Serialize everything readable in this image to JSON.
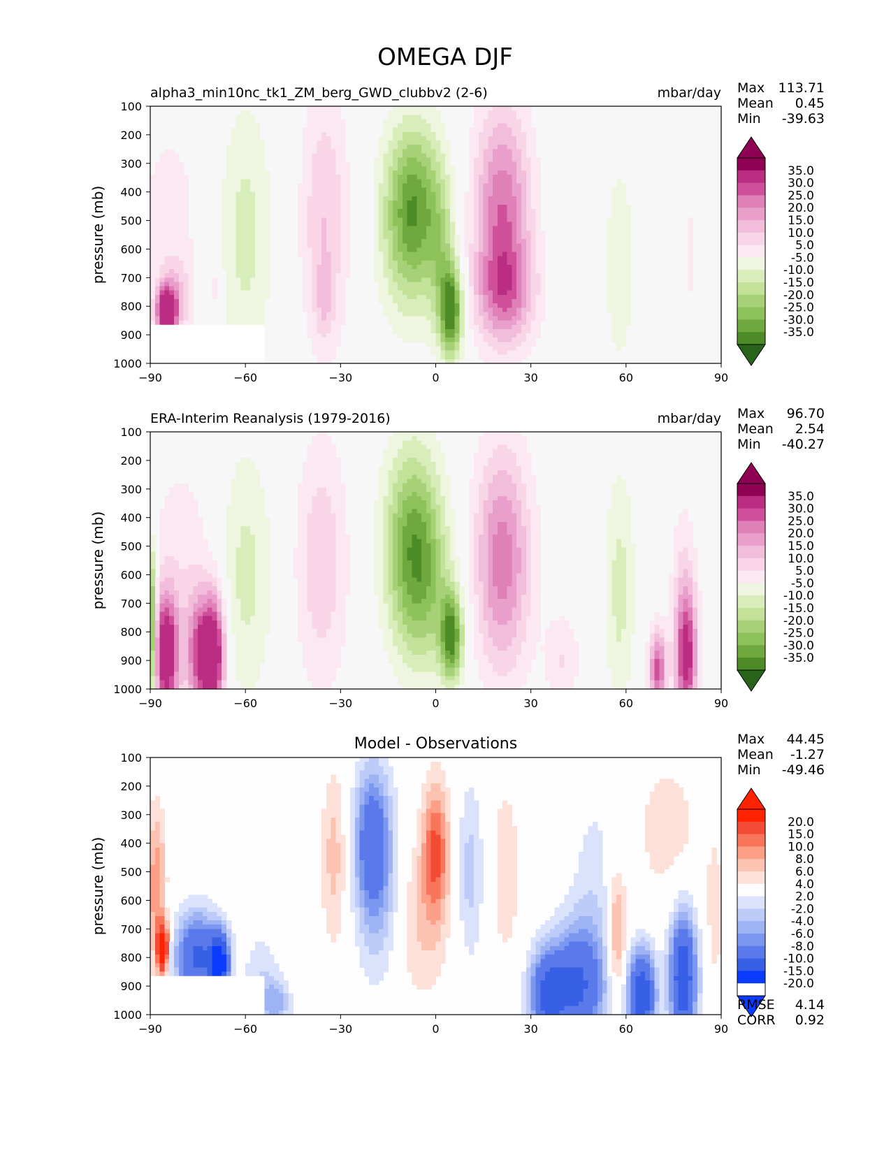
{
  "figure": {
    "title": "OMEGA DJF"
  },
  "colors": {
    "panel_bg": "#f7f7f7",
    "diff_bg": "#fdfdfd",
    "pink_levels": [
      "#f7f7f7",
      "#fbe8f2",
      "#f8d6e8",
      "#f2bcdb",
      "#e99fcb",
      "#df80b8",
      "#cf4f9a",
      "#bb2d82",
      "#8e0152"
    ],
    "green_levels": [
      "#f7f7f7",
      "#eef6e0",
      "#d9edbb",
      "#c2e29a",
      "#a6d176",
      "#8dc25a",
      "#6fa83c",
      "#4d8b27",
      "#2e6a16",
      "#276419"
    ],
    "red_levels": [
      "#fdfdfd",
      "#fde0d8",
      "#fcc3b3",
      "#fb9f86",
      "#f8755b",
      "#f34a34",
      "#ff2200"
    ],
    "blue_levels": [
      "#fdfdfd",
      "#dbe2fb",
      "#bccbf8",
      "#9db3f4",
      "#7c97ef",
      "#5a79ea",
      "#3760e6",
      "#0a3cff"
    ]
  },
  "chart_data": [
    {
      "type": "contour",
      "id": "model",
      "title_left": "alpha3_min10nc_tk1_ZM_berg_GWD_clubbv2 (2-6)",
      "title_center": "",
      "units": "mbar/day",
      "ylabel": "pressure (mb)",
      "xlim": [
        -90,
        90
      ],
      "ylim": [
        1000,
        100
      ],
      "x_ticks": [
        "−90",
        "−60",
        "−30",
        "0",
        "30",
        "60",
        "90"
      ],
      "y_ticks": [
        "100",
        "200",
        "300",
        "400",
        "500",
        "600",
        "700",
        "800",
        "900",
        "1000"
      ],
      "stats": {
        "max_label": "Max",
        "max": "113.71",
        "mean_label": "Mean",
        "mean": "0.45",
        "min_label": "Min",
        "min": "-39.63"
      },
      "colorbar_levels": [
        "35.0",
        "30.0",
        "25.0",
        "20.0",
        "15.0",
        "10.0",
        "5.0",
        "-5.0",
        "-10.0",
        "-15.0",
        "-20.0",
        "-25.0",
        "-30.0",
        "-35.0"
      ],
      "colorscale": "PiYG",
      "blobs": [
        {
          "lat": -84,
          "p": 500,
          "sigLat": 7,
          "sigP": 260,
          "amp": 8
        },
        {
          "lat": -85,
          "p": 820,
          "sigLat": 2.2,
          "sigP": 60,
          "amp": 45
        },
        {
          "lat": -82,
          "p": 780,
          "sigLat": 3.5,
          "sigP": 90,
          "amp": 14
        },
        {
          "lat": -70,
          "p": 730,
          "sigLat": 1.5,
          "sigP": 80,
          "amp": 8
        },
        {
          "lat": -60,
          "p": 550,
          "sigLat": 6,
          "sigP": 330,
          "amp": -12
        },
        {
          "lat": -35,
          "p": 500,
          "sigLat": 5.5,
          "sigP": 340,
          "amp": 15
        },
        {
          "lat": -35,
          "p": 780,
          "sigLat": 2,
          "sigP": 90,
          "amp": 8
        },
        {
          "lat": -7,
          "p": 420,
          "sigLat": 6.5,
          "sigP": 200,
          "amp": -28
        },
        {
          "lat": -8,
          "p": 620,
          "sigLat": 7,
          "sigP": 200,
          "amp": -12
        },
        {
          "lat": 5,
          "p": 820,
          "sigLat": 2.5,
          "sigP": 110,
          "amp": -38
        },
        {
          "lat": 2,
          "p": 650,
          "sigLat": 3,
          "sigP": 200,
          "amp": -12
        },
        {
          "lat": 21,
          "p": 480,
          "sigLat": 6.5,
          "sigP": 270,
          "amp": 30
        },
        {
          "lat": 22,
          "p": 760,
          "sigLat": 7,
          "sigP": 120,
          "amp": 18
        },
        {
          "lat": 58,
          "p": 650,
          "sigLat": 4,
          "sigP": 310,
          "amp": -8
        },
        {
          "lat": 80,
          "p": 620,
          "sigLat": 2,
          "sigP": 210,
          "amp": 6
        }
      ],
      "missing_region": [
        {
          "lat0": -90,
          "lat1": -54,
          "p0": 865
        }
      ]
    },
    {
      "type": "contour",
      "id": "obs",
      "title_left": "ERA-Interim Reanalysis (1979-2016)",
      "title_center": "",
      "units": "mbar/day",
      "ylabel": "pressure (mb)",
      "xlim": [
        -90,
        90
      ],
      "ylim": [
        1000,
        100
      ],
      "x_ticks": [
        "−90",
        "−60",
        "−30",
        "0",
        "30",
        "60",
        "90"
      ],
      "y_ticks": [
        "100",
        "200",
        "300",
        "400",
        "500",
        "600",
        "700",
        "800",
        "900",
        "1000"
      ],
      "stats": {
        "max_label": "Max",
        "max": "96.70",
        "mean_label": "Mean",
        "mean": "2.54",
        "min_label": "Min",
        "min": "-40.27"
      },
      "colorbar_levels": [
        "35.0",
        "30.0",
        "25.0",
        "20.0",
        "15.0",
        "10.0",
        "5.0",
        "-5.0",
        "-10.0",
        "-15.0",
        "-20.0",
        "-25.0",
        "-30.0",
        "-35.0"
      ],
      "colorscale": "PiYG",
      "blobs": [
        {
          "lat": -80,
          "p": 550,
          "sigLat": 8,
          "sigP": 280,
          "amp": 8
        },
        {
          "lat": -85,
          "p": 880,
          "sigLat": 2.8,
          "sigP": 150,
          "amp": 45
        },
        {
          "lat": -75,
          "p": 880,
          "sigLat": 2.8,
          "sigP": 150,
          "amp": 28
        },
        {
          "lat": -70,
          "p": 880,
          "sigLat": 2.6,
          "sigP": 150,
          "amp": 45
        },
        {
          "lat": -89.5,
          "p": 800,
          "sigLat": 1,
          "sigP": 200,
          "amp": -40
        },
        {
          "lat": -60,
          "p": 600,
          "sigLat": 6,
          "sigP": 320,
          "amp": -12
        },
        {
          "lat": -36,
          "p": 560,
          "sigLat": 6,
          "sigP": 320,
          "amp": 14
        },
        {
          "lat": -7,
          "p": 480,
          "sigLat": 6.5,
          "sigP": 240,
          "amp": -30
        },
        {
          "lat": 5,
          "p": 820,
          "sigLat": 2.5,
          "sigP": 110,
          "amp": -35
        },
        {
          "lat": -3,
          "p": 700,
          "sigLat": 7,
          "sigP": 200,
          "amp": -12
        },
        {
          "lat": 21,
          "p": 550,
          "sigLat": 6.5,
          "sigP": 280,
          "amp": 28
        },
        {
          "lat": 40,
          "p": 900,
          "sigLat": 4,
          "sigP": 120,
          "amp": 10
        },
        {
          "lat": 58,
          "p": 650,
          "sigLat": 3.5,
          "sigP": 300,
          "amp": -12
        },
        {
          "lat": 70,
          "p": 930,
          "sigLat": 2,
          "sigP": 100,
          "amp": 32
        },
        {
          "lat": 79,
          "p": 890,
          "sigLat": 2.5,
          "sigP": 170,
          "amp": 38
        },
        {
          "lat": 78,
          "p": 600,
          "sigLat": 3,
          "sigP": 220,
          "amp": 8
        }
      ],
      "missing_region": []
    },
    {
      "type": "contour",
      "id": "diff",
      "title_left": "",
      "title_center": "Model - Observations",
      "units": "",
      "ylabel": "pressure (mb)",
      "xlim": [
        -90,
        90
      ],
      "ylim": [
        1000,
        100
      ],
      "x_ticks": [
        "−90",
        "−60",
        "−30",
        "0",
        "30",
        "60",
        "90"
      ],
      "y_ticks": [
        "100",
        "200",
        "300",
        "400",
        "500",
        "600",
        "700",
        "800",
        "900",
        "1000"
      ],
      "stats": {
        "max_label": "Max",
        "max": "44.45",
        "mean_label": "Mean",
        "mean": "-1.27",
        "min_label": "Min",
        "min": "-49.46"
      },
      "colorbar_levels": [
        "20.0",
        "15.0",
        "10.0",
        "8.0",
        "6.0",
        "4.0",
        "2.0",
        "-2.0",
        "-4.0",
        "-6.0",
        "-8.0",
        "-10.0",
        "-15.0",
        "-20.0"
      ],
      "colorscale": "RdBu_r",
      "metrics": {
        "rmse_label": "RMSE",
        "rmse": "4.14",
        "corr_label": "CORR",
        "corr": "0.92"
      },
      "blobs": [
        {
          "lat": -88,
          "p": 560,
          "sigLat": 2,
          "sigP": 200,
          "amp": 8
        },
        {
          "lat": -86,
          "p": 770,
          "sigLat": 1.2,
          "sigP": 60,
          "amp": 20
        },
        {
          "lat": -75,
          "p": 800,
          "sigLat": 5,
          "sigP": 110,
          "amp": -16
        },
        {
          "lat": -68,
          "p": 820,
          "sigLat": 2,
          "sigP": 70,
          "amp": -22
        },
        {
          "lat": -55,
          "p": 900,
          "sigLat": 4,
          "sigP": 130,
          "amp": -4
        },
        {
          "lat": -50,
          "p": 960,
          "sigLat": 3,
          "sigP": 60,
          "amp": -6
        },
        {
          "lat": -32,
          "p": 450,
          "sigLat": 3,
          "sigP": 220,
          "amp": 5
        },
        {
          "lat": -20,
          "p": 380,
          "sigLat": 4,
          "sigP": 180,
          "amp": -12
        },
        {
          "lat": -18,
          "p": 600,
          "sigLat": 5,
          "sigP": 220,
          "amp": -5
        },
        {
          "lat": 0,
          "p": 420,
          "sigLat": 3,
          "sigP": 170,
          "amp": 10
        },
        {
          "lat": -5,
          "p": 680,
          "sigLat": 6,
          "sigP": 200,
          "amp": 4
        },
        {
          "lat": 11,
          "p": 500,
          "sigLat": 3,
          "sigP": 220,
          "amp": -5
        },
        {
          "lat": 22,
          "p": 500,
          "sigLat": 4,
          "sigP": 280,
          "amp": 3
        },
        {
          "lat": 35,
          "p": 930,
          "sigLat": 4,
          "sigP": 110,
          "amp": -15
        },
        {
          "lat": 45,
          "p": 900,
          "sigLat": 6,
          "sigP": 150,
          "amp": -15
        },
        {
          "lat": 57,
          "p": 720,
          "sigLat": 2,
          "sigP": 150,
          "amp": 8
        },
        {
          "lat": 65,
          "p": 930,
          "sigLat": 3,
          "sigP": 110,
          "amp": -20
        },
        {
          "lat": 78,
          "p": 870,
          "sigLat": 3,
          "sigP": 160,
          "amp": -20
        },
        {
          "lat": 73,
          "p": 350,
          "sigLat": 8,
          "sigP": 200,
          "amp": 3
        },
        {
          "lat": 50,
          "p": 550,
          "sigLat": 5,
          "sigP": 250,
          "amp": -3
        },
        {
          "lat": 88,
          "p": 650,
          "sigLat": 2,
          "sigP": 200,
          "amp": 3
        }
      ],
      "missing_region": [
        {
          "lat0": -90,
          "lat1": -54,
          "p0": 865
        }
      ]
    }
  ]
}
